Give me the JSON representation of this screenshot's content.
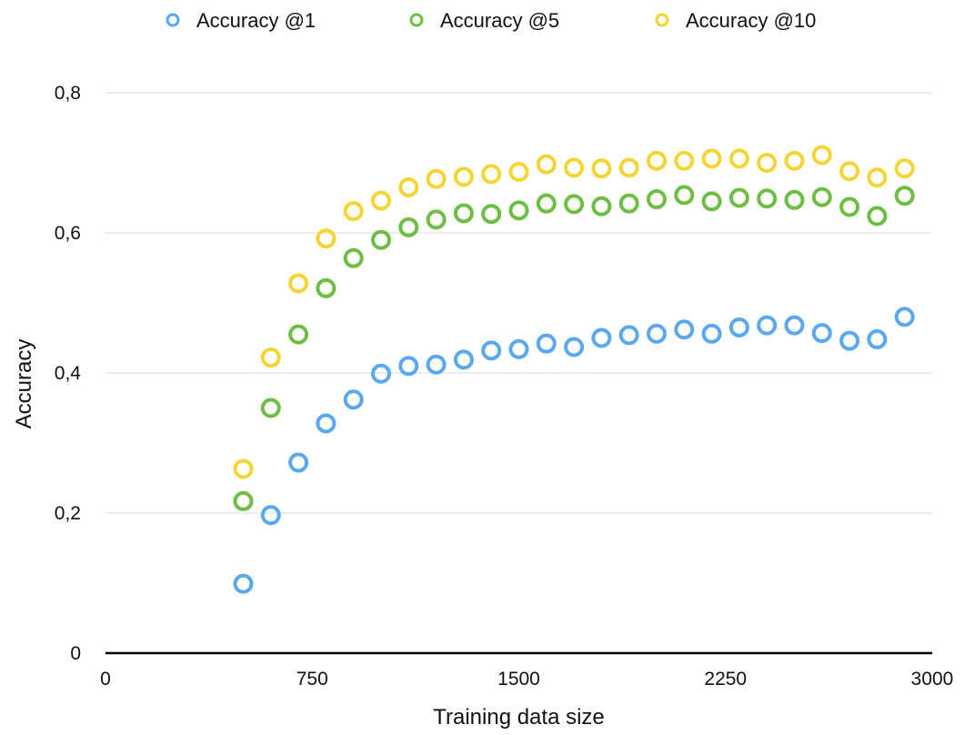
{
  "chart_data": {
    "type": "scatter",
    "title": "",
    "xlabel": "Training data size",
    "ylabel": "Accuracy",
    "xlim": [
      0,
      3000
    ],
    "ylim": [
      0,
      0.8
    ],
    "x_ticks": [
      0,
      750,
      1500,
      2250,
      3000
    ],
    "x_tick_labels": [
      "0",
      "750",
      "1500",
      "2250",
      "3000"
    ],
    "y_ticks": [
      0,
      0.2,
      0.4,
      0.6,
      0.8
    ],
    "y_tick_labels": [
      "0",
      "0,2",
      "0,4",
      "0,6",
      "0,8"
    ],
    "grid": true,
    "legend_position": "top",
    "x": [
      500,
      600,
      700,
      800,
      900,
      1000,
      1100,
      1200,
      1300,
      1400,
      1500,
      1600,
      1700,
      1800,
      1900,
      2000,
      2100,
      2200,
      2300,
      2400,
      2500,
      2600,
      2700,
      2800,
      2900
    ],
    "series": [
      {
        "name": "Accuracy @1",
        "color": "#5aa8f0",
        "values": [
          0.099,
          0.197,
          0.272,
          0.328,
          0.362,
          0.399,
          0.41,
          0.412,
          0.419,
          0.432,
          0.434,
          0.442,
          0.437,
          0.45,
          0.454,
          0.456,
          0.462,
          0.456,
          0.465,
          0.468,
          0.468,
          0.457,
          0.446,
          0.448,
          0.48
        ]
      },
      {
        "name": "Accuracy @5",
        "color": "#6ebe44",
        "values": [
          0.217,
          0.35,
          0.455,
          0.521,
          0.564,
          0.59,
          0.608,
          0.619,
          0.628,
          0.627,
          0.632,
          0.642,
          0.641,
          0.638,
          0.642,
          0.648,
          0.654,
          0.645,
          0.65,
          0.649,
          0.647,
          0.651,
          0.637,
          0.624,
          0.653
        ]
      },
      {
        "name": "Accuracy @10",
        "color": "#f5d435",
        "values": [
          0.263,
          0.422,
          0.528,
          0.592,
          0.631,
          0.646,
          0.665,
          0.677,
          0.68,
          0.684,
          0.687,
          0.698,
          0.693,
          0.692,
          0.693,
          0.703,
          0.703,
          0.706,
          0.706,
          0.7,
          0.703,
          0.711,
          0.688,
          0.679,
          0.692
        ]
      }
    ]
  }
}
